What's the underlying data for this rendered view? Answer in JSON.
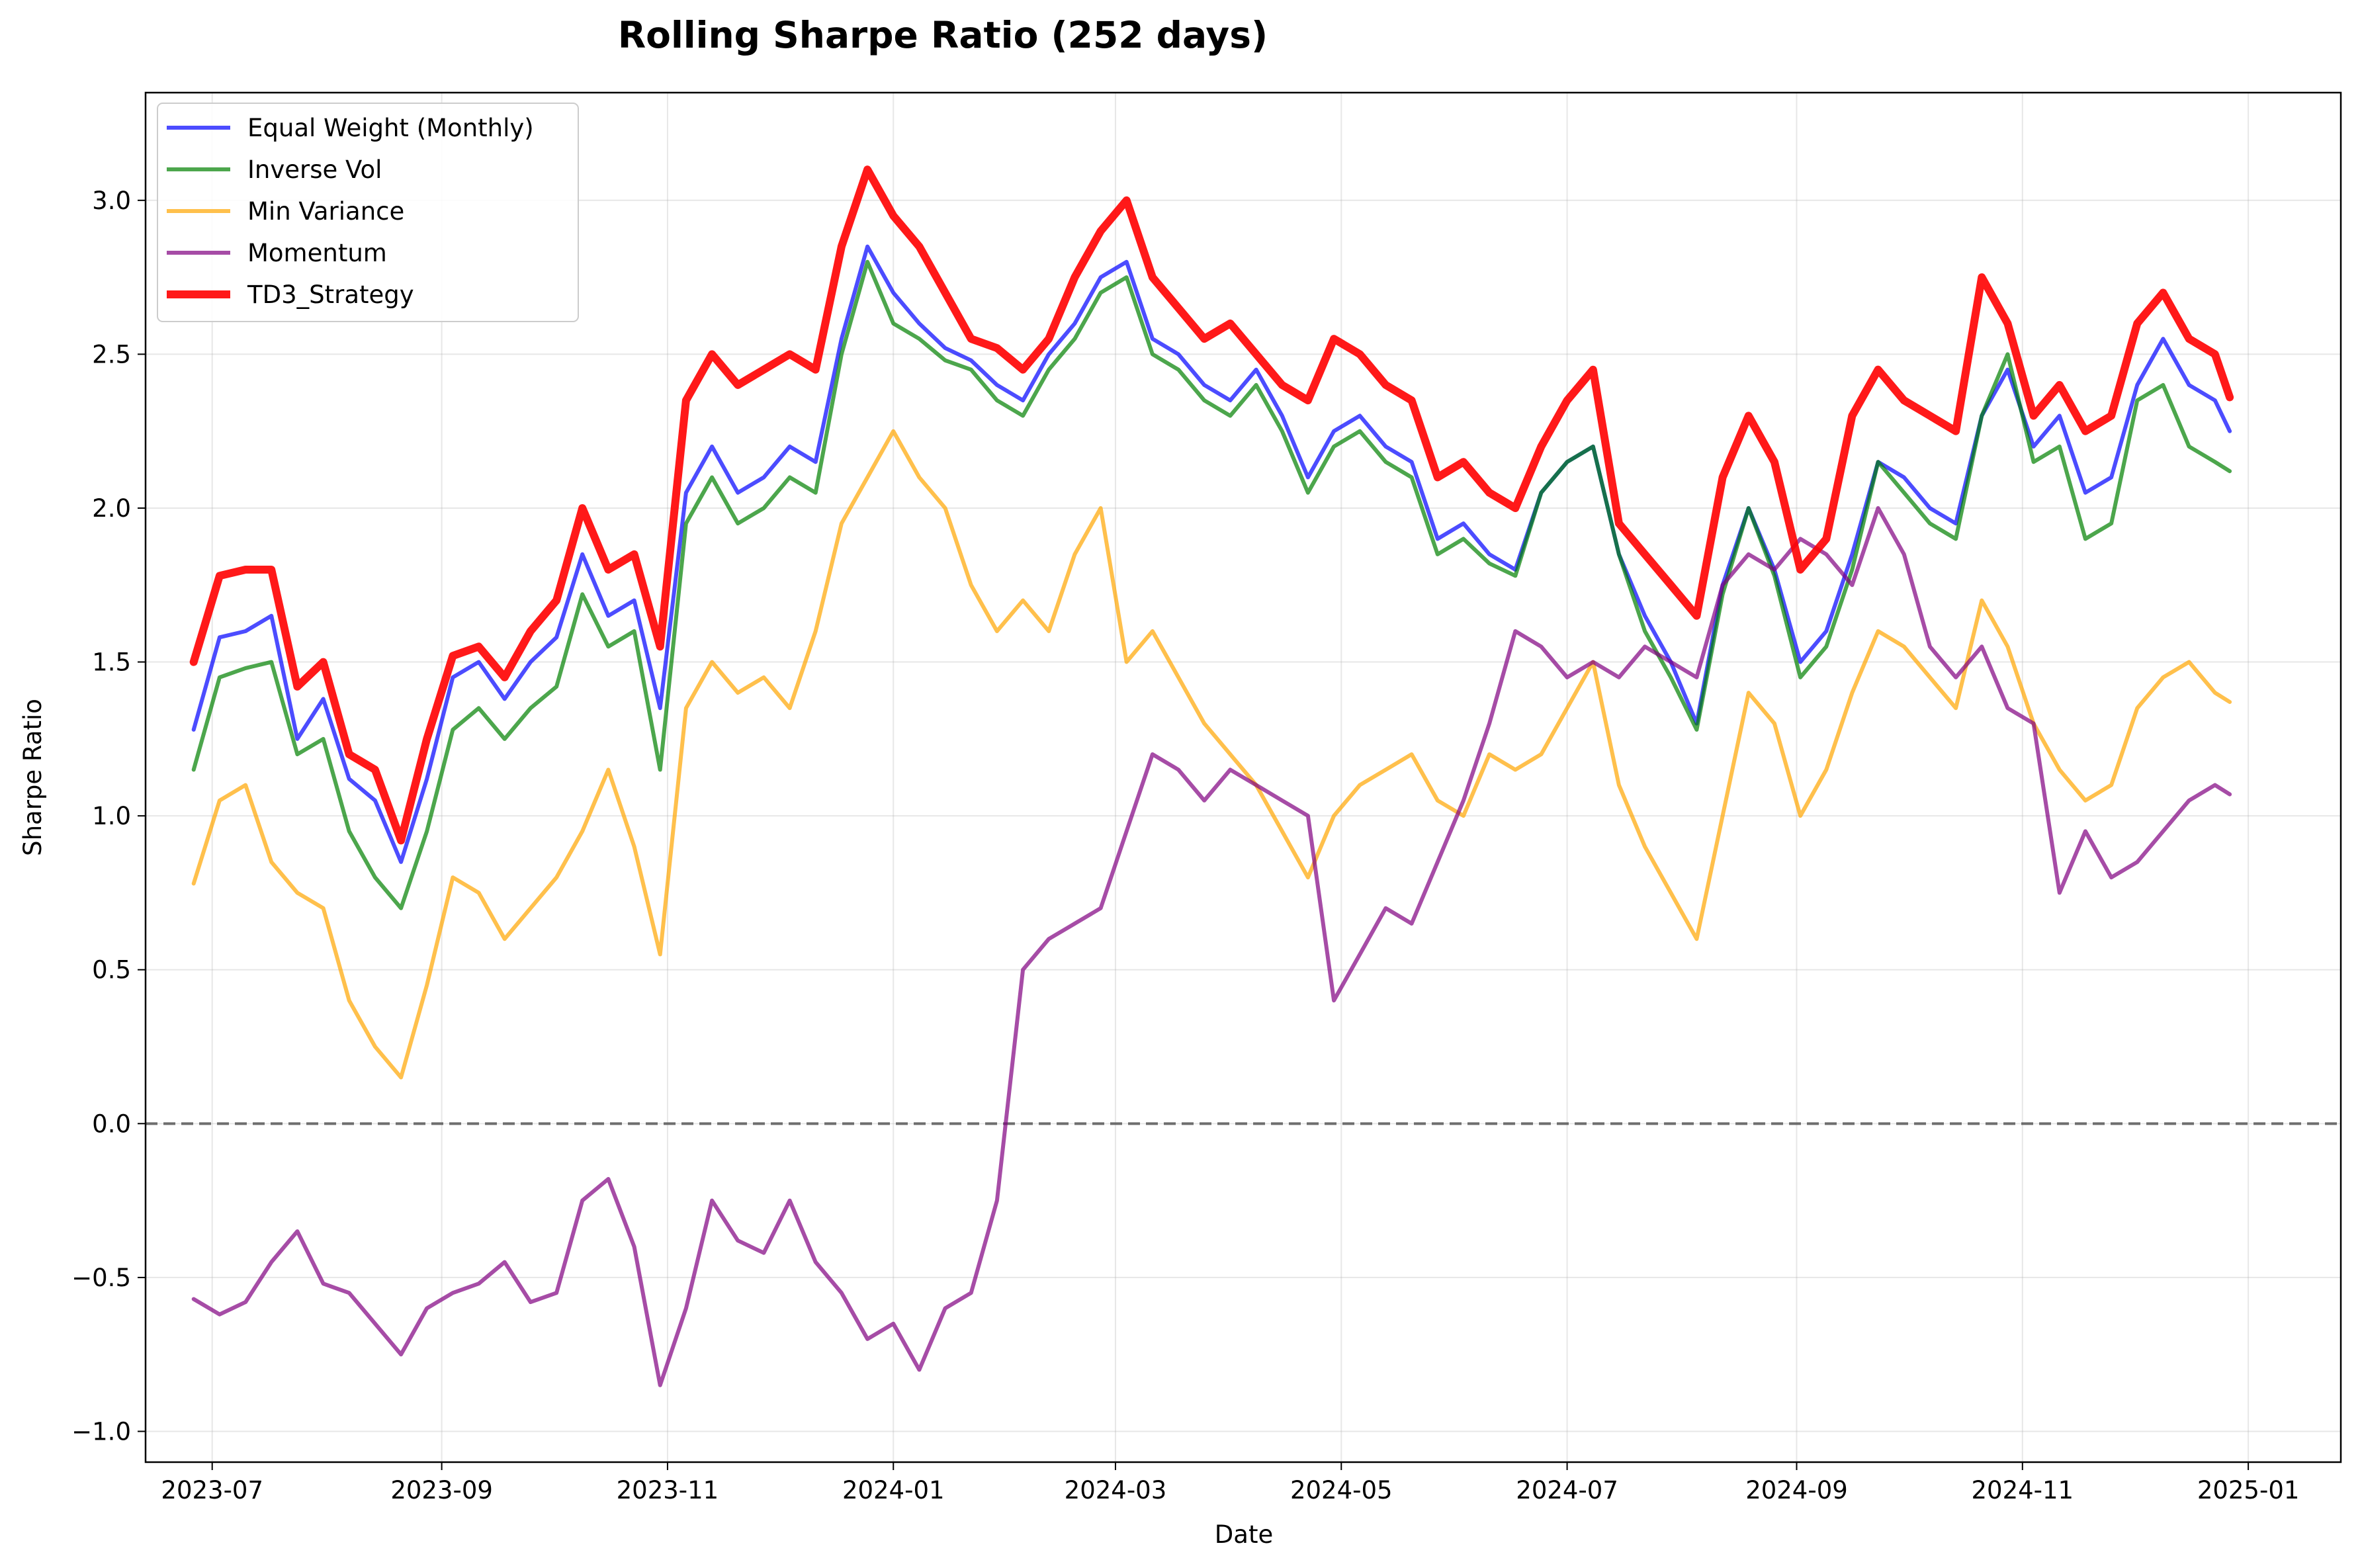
{
  "chart_data": {
    "type": "line",
    "title": "Rolling Sharpe Ratio (252 days)",
    "xlabel": "Date",
    "ylabel": "Sharpe Ratio",
    "ylim": [
      -1.1,
      3.35
    ],
    "xlim": [
      "2023-06-13",
      "2025-01-26"
    ],
    "grid": true,
    "legend_position": "upper-left",
    "x_ticks": [
      "2023-07",
      "2023-09",
      "2023-11",
      "2024-01",
      "2024-03",
      "2024-05",
      "2024-07",
      "2024-09",
      "2024-11",
      "2025-01"
    ],
    "y_ticks": [
      -1.0,
      -0.5,
      0.0,
      0.5,
      1.0,
      1.5,
      2.0,
      2.5,
      3.0
    ],
    "reference_line": {
      "y": 0.0,
      "style": "dashed",
      "color": "#666666"
    },
    "x": [
      "2023-06-26",
      "2023-07-03",
      "2023-07-10",
      "2023-07-17",
      "2023-07-24",
      "2023-07-31",
      "2023-08-07",
      "2023-08-14",
      "2023-08-21",
      "2023-08-28",
      "2023-09-04",
      "2023-09-11",
      "2023-09-18",
      "2023-09-25",
      "2023-10-02",
      "2023-10-09",
      "2023-10-16",
      "2023-10-23",
      "2023-10-30",
      "2023-11-06",
      "2023-11-13",
      "2023-11-20",
      "2023-11-27",
      "2023-12-04",
      "2023-12-11",
      "2023-12-18",
      "2023-12-25",
      "2024-01-01",
      "2024-01-08",
      "2024-01-15",
      "2024-01-22",
      "2024-01-29",
      "2024-02-05",
      "2024-02-12",
      "2024-02-19",
      "2024-02-26",
      "2024-03-04",
      "2024-03-11",
      "2024-03-18",
      "2024-03-25",
      "2024-04-01",
      "2024-04-08",
      "2024-04-15",
      "2024-04-22",
      "2024-04-29",
      "2024-05-06",
      "2024-05-13",
      "2024-05-20",
      "2024-05-27",
      "2024-06-03",
      "2024-06-10",
      "2024-06-17",
      "2024-06-24",
      "2024-07-01",
      "2024-07-08",
      "2024-07-15",
      "2024-07-22",
      "2024-07-29",
      "2024-08-05",
      "2024-08-12",
      "2024-08-19",
      "2024-08-26",
      "2024-09-02",
      "2024-09-09",
      "2024-09-16",
      "2024-09-23",
      "2024-09-30",
      "2024-10-07",
      "2024-10-14",
      "2024-10-21",
      "2024-10-28",
      "2024-11-04",
      "2024-11-11",
      "2024-11-18",
      "2024-11-25",
      "2024-12-02",
      "2024-12-09",
      "2024-12-16",
      "2024-12-23",
      "2024-12-27"
    ],
    "series": [
      {
        "name": "Equal Weight (Monthly)",
        "color": "#0000ff",
        "width": 2,
        "values": [
          1.28,
          1.58,
          1.6,
          1.65,
          1.25,
          1.38,
          1.12,
          1.05,
          0.85,
          1.12,
          1.45,
          1.5,
          1.38,
          1.5,
          1.58,
          1.85,
          1.65,
          1.7,
          1.35,
          2.05,
          2.2,
          2.05,
          2.1,
          2.2,
          2.15,
          2.55,
          2.85,
          2.7,
          2.6,
          2.52,
          2.48,
          2.4,
          2.35,
          2.5,
          2.6,
          2.75,
          2.8,
          2.55,
          2.5,
          2.4,
          2.35,
          2.45,
          2.3,
          2.1,
          2.25,
          2.3,
          2.2,
          2.15,
          1.9,
          1.95,
          1.85,
          1.8,
          2.05,
          2.15,
          2.2,
          1.85,
          1.65,
          1.5,
          1.3,
          1.75,
          2.0,
          1.8,
          1.5,
          1.6,
          1.85,
          2.15,
          2.1,
          2.0,
          1.95,
          2.3,
          2.45,
          2.2,
          2.3,
          2.05,
          2.1,
          2.4,
          2.55,
          2.4,
          2.35,
          2.25
        ]
      },
      {
        "name": "Inverse Vol",
        "color": "#008000",
        "width": 2,
        "values": [
          1.15,
          1.45,
          1.48,
          1.5,
          1.2,
          1.25,
          0.95,
          0.8,
          0.7,
          0.95,
          1.28,
          1.35,
          1.25,
          1.35,
          1.42,
          1.72,
          1.55,
          1.6,
          1.15,
          1.95,
          2.1,
          1.95,
          2.0,
          2.1,
          2.05,
          2.5,
          2.8,
          2.6,
          2.55,
          2.48,
          2.45,
          2.35,
          2.3,
          2.45,
          2.55,
          2.7,
          2.75,
          2.5,
          2.45,
          2.35,
          2.3,
          2.4,
          2.25,
          2.05,
          2.2,
          2.25,
          2.15,
          2.1,
          1.85,
          1.9,
          1.82,
          1.78,
          2.05,
          2.15,
          2.2,
          1.85,
          1.6,
          1.45,
          1.28,
          1.72,
          2.0,
          1.78,
          1.45,
          1.55,
          1.8,
          2.15,
          2.05,
          1.95,
          1.9,
          2.3,
          2.5,
          2.15,
          2.2,
          1.9,
          1.95,
          2.35,
          2.4,
          2.2,
          2.15,
          2.12
        ]
      },
      {
        "name": "Min Variance",
        "color": "#ffa500",
        "width": 2,
        "values": [
          0.78,
          1.05,
          1.1,
          0.85,
          0.75,
          0.7,
          0.4,
          0.25,
          0.15,
          0.45,
          0.8,
          0.75,
          0.6,
          0.7,
          0.8,
          0.95,
          1.15,
          0.9,
          0.55,
          1.35,
          1.5,
          1.4,
          1.45,
          1.35,
          1.6,
          1.95,
          2.1,
          2.25,
          2.1,
          2.0,
          1.75,
          1.6,
          1.7,
          1.6,
          1.85,
          2.0,
          1.5,
          1.6,
          1.45,
          1.3,
          1.2,
          1.1,
          0.95,
          0.8,
          1.0,
          1.1,
          1.15,
          1.2,
          1.05,
          1.0,
          1.2,
          1.15,
          1.2,
          1.35,
          1.5,
          1.1,
          0.9,
          0.75,
          0.6,
          1.0,
          1.4,
          1.3,
          1.0,
          1.15,
          1.4,
          1.6,
          1.55,
          1.45,
          1.35,
          1.7,
          1.55,
          1.3,
          1.15,
          1.05,
          1.1,
          1.35,
          1.45,
          1.5,
          1.4,
          1.37
        ]
      },
      {
        "name": "Momentum",
        "color": "#800080",
        "width": 2,
        "values": [
          -0.57,
          -0.62,
          -0.58,
          -0.45,
          -0.35,
          -0.52,
          -0.55,
          -0.65,
          -0.75,
          -0.6,
          -0.55,
          -0.52,
          -0.45,
          -0.58,
          -0.55,
          -0.25,
          -0.18,
          -0.4,
          -0.85,
          -0.6,
          -0.25,
          -0.38,
          -0.42,
          -0.25,
          -0.45,
          -0.55,
          -0.7,
          -0.65,
          -0.8,
          -0.6,
          -0.55,
          -0.25,
          0.5,
          0.6,
          0.65,
          0.7,
          0.95,
          1.2,
          1.15,
          1.05,
          1.15,
          1.1,
          1.05,
          1.0,
          0.4,
          0.55,
          0.7,
          0.65,
          0.85,
          1.05,
          1.3,
          1.6,
          1.55,
          1.45,
          1.5,
          1.45,
          1.55,
          1.5,
          1.45,
          1.75,
          1.85,
          1.8,
          1.9,
          1.85,
          1.75,
          2.0,
          1.85,
          1.55,
          1.45,
          1.55,
          1.35,
          1.3,
          0.75,
          0.95,
          0.8,
          0.85,
          0.95,
          1.05,
          1.1,
          1.07
        ]
      },
      {
        "name": "TD3_Strategy",
        "color": "#ff0000",
        "width": 4,
        "values": [
          1.5,
          1.78,
          1.8,
          1.8,
          1.42,
          1.5,
          1.2,
          1.15,
          0.92,
          1.25,
          1.52,
          1.55,
          1.45,
          1.6,
          1.7,
          2.0,
          1.8,
          1.85,
          1.55,
          2.35,
          2.5,
          2.4,
          2.45,
          2.5,
          2.45,
          2.85,
          3.1,
          2.95,
          2.85,
          2.7,
          2.55,
          2.52,
          2.45,
          2.55,
          2.75,
          2.9,
          3.0,
          2.75,
          2.65,
          2.55,
          2.6,
          2.5,
          2.4,
          2.35,
          2.55,
          2.5,
          2.4,
          2.35,
          2.1,
          2.15,
          2.05,
          2.0,
          2.2,
          2.35,
          2.45,
          1.95,
          1.85,
          1.75,
          1.65,
          2.1,
          2.3,
          2.15,
          1.8,
          1.9,
          2.3,
          2.45,
          2.35,
          2.3,
          2.25,
          2.75,
          2.6,
          2.3,
          2.4,
          2.25,
          2.3,
          2.6,
          2.7,
          2.55,
          2.5,
          2.36
        ]
      }
    ]
  }
}
